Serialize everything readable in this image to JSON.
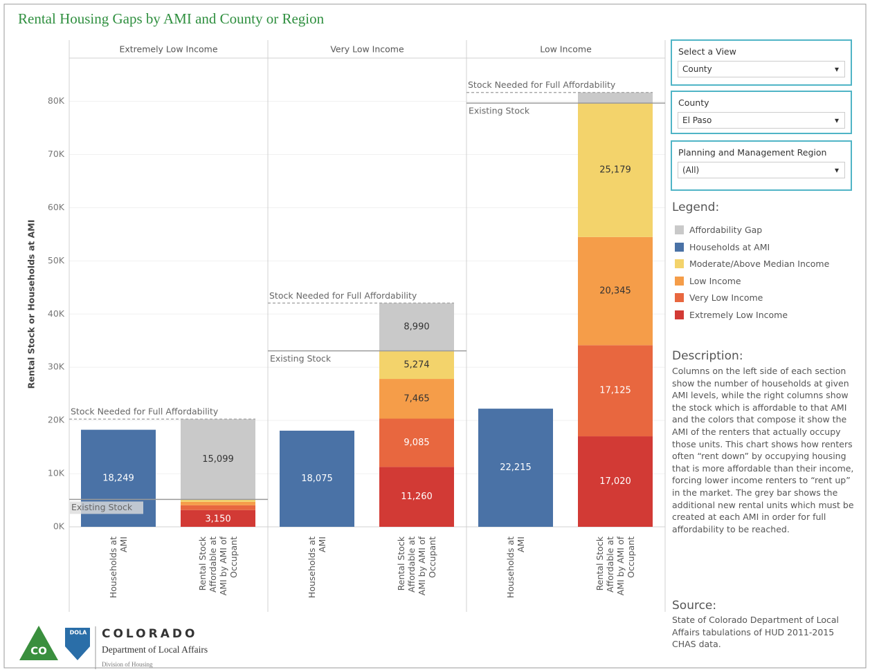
{
  "chart_data": {
    "type": "stacked-bar",
    "title": "Rental Housing Gaps by AMI and County or Region",
    "ylabel": "Rental Stock or Households at AMI",
    "panels": [
      "Extremely Low Income",
      "Very Low Income",
      "Low Income"
    ],
    "categories": [
      "Households at AMI",
      "Rental Stock Affordable at AMI by AMI of Occupant",
      "Households at AMI",
      "Rental Stock Affordable at AMI by AMI of Occupant",
      "Households at AMI",
      "Rental Stock Affordable at AMI by AMI of Occupant"
    ],
    "series": [
      {
        "name": "Affordability Gap",
        "color": "#c9c9c9",
        "values": [
          null,
          15099,
          null,
          8990,
          null,
          2000
        ],
        "value_labels": [
          null,
          "15,099",
          null,
          "8,990",
          null,
          null
        ]
      },
      {
        "name": "Households at AMI",
        "color": "#4a72a6",
        "values": [
          18249,
          null,
          18075,
          null,
          22215,
          null
        ],
        "value_labels": [
          "18,249",
          null,
          "18,075",
          null,
          "22,215",
          null
        ]
      },
      {
        "name": "Moderate/Above Median Income",
        "color": "#f3d36b",
        "values": [
          null,
          450,
          null,
          5274,
          null,
          25179
        ],
        "value_labels": [
          null,
          null,
          null,
          "5,274",
          null,
          "25,179"
        ]
      },
      {
        "name": "Low Income",
        "color": "#f59d49",
        "values": [
          null,
          650,
          null,
          7465,
          null,
          20345
        ],
        "value_labels": [
          null,
          null,
          null,
          "7,465",
          null,
          "20,345"
        ]
      },
      {
        "name": "Very Low Income",
        "color": "#e8673f",
        "values": [
          null,
          900,
          null,
          9085,
          null,
          17125
        ],
        "value_labels": [
          null,
          null,
          null,
          "9,085",
          null,
          "17,125"
        ]
      },
      {
        "name": "Extremely Low Income",
        "color": "#d23a35",
        "values": [
          null,
          3150,
          null,
          11260,
          null,
          17020
        ],
        "value_labels": [
          null,
          "3,150",
          null,
          "11,260",
          null,
          "17,020"
        ]
      }
    ],
    "annotations": {
      "needed": "Stock Needed for Full Affordability",
      "existing": "Existing Stock"
    },
    "ylim": [
      0,
      88000
    ],
    "yticks": [
      {
        "value": 0,
        "label": "0K"
      },
      {
        "value": 10000,
        "label": "10K"
      },
      {
        "value": 20000,
        "label": "20K"
      },
      {
        "value": 30000,
        "label": "30K"
      },
      {
        "value": 40000,
        "label": "40K"
      },
      {
        "value": 50000,
        "label": "50K"
      },
      {
        "value": 60000,
        "label": "60K"
      },
      {
        "value": 70000,
        "label": "70K"
      },
      {
        "value": 80000,
        "label": "80K"
      }
    ],
    "grid": true
  },
  "filters": [
    {
      "label": "Select a View",
      "value": "County"
    },
    {
      "label": "County",
      "value": "El Paso"
    },
    {
      "label": "Planning and Management Region",
      "value": "(All)"
    }
  ],
  "legend_title": "Legend:",
  "description": {
    "title": "Description:",
    "text": "Columns on the left side of each section show the number of households at given AMI levels, while the right columns show the stock which is affordable to that AMI and the colors that compose it show the AMI of the renters that actually occupy those units. This chart shows how renters often “rent down” by occupying housing that is more affordable than their income, forcing lower income renters to “rent up” in the market. The grey bar shows the additional new rental units which must be created at each AMI in order for full affordability to be reached."
  },
  "source": {
    "title": "Source:",
    "text": "State of Colorado Department of Local Affairs tabulations of HUD 2011-2015 CHAS data."
  },
  "logo": {
    "badge_top": "DOLA",
    "badge": "CO",
    "name": "COLORADO",
    "department": "Department of Local Affairs",
    "division": "Division of Housing"
  }
}
